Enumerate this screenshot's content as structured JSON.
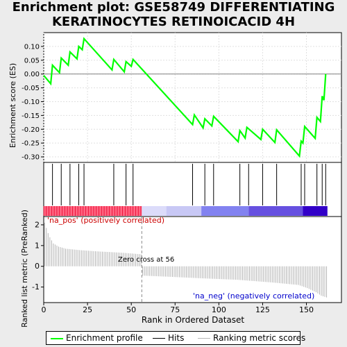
{
  "title_line1": "Enrichment plot: GSE58749 DIFFERENTIATING",
  "title_line2": "KERATINOCYTES RETINOICACID 4H",
  "colors": {
    "enrichment": "#00ff00",
    "hits": "#000000",
    "ranking": "#b4b4b4",
    "pos_label": "#cc0000",
    "neg_label": "#0000cc",
    "zero_line": "#888888"
  },
  "chart_data": {
    "type": "line",
    "x_range": [
      0,
      170
    ],
    "x_ticks": [
      0,
      25,
      50,
      75,
      100,
      125,
      150
    ],
    "xlabel": "Rank in Ordered Dataset",
    "top_panel": {
      "ylabel": "Enrichment score (ES)",
      "ylim": [
        -0.32,
        0.15
      ],
      "y_ticks": [
        "0.10",
        "0.05",
        "0.00",
        "-0.05",
        "-0.10",
        "-0.15",
        "-0.20",
        "-0.25",
        "-0.30"
      ],
      "y_tick_values": [
        0.1,
        0.05,
        0.0,
        -0.05,
        -0.1,
        -0.15,
        -0.2,
        -0.25,
        -0.3
      ],
      "series_name": "Enrichment profile",
      "x": [
        0,
        4,
        5,
        9,
        10,
        14,
        15,
        19,
        20,
        22,
        23,
        39,
        40,
        46,
        47,
        50,
        51,
        85,
        86,
        91,
        92,
        96,
        97,
        111,
        112,
        115,
        116,
        124,
        125,
        132,
        133,
        146,
        147,
        148,
        149,
        155,
        156,
        158,
        159,
        160,
        161
      ],
      "es": [
        -0.005,
        -0.035,
        0.032,
        0.005,
        0.058,
        0.032,
        0.08,
        0.055,
        0.1,
        0.088,
        0.128,
        0.015,
        0.053,
        0.008,
        0.045,
        0.028,
        0.053,
        -0.183,
        -0.148,
        -0.195,
        -0.162,
        -0.188,
        -0.153,
        -0.245,
        -0.205,
        -0.232,
        -0.193,
        -0.237,
        -0.2,
        -0.248,
        -0.202,
        -0.297,
        -0.243,
        -0.25,
        -0.19,
        -0.233,
        -0.157,
        -0.172,
        -0.08,
        -0.095,
        0.0
      ]
    },
    "hits_panel": {
      "series_name": "Hits",
      "hits": [
        5,
        10,
        15,
        20,
        23,
        40,
        47,
        51,
        85,
        92,
        97,
        112,
        117,
        125,
        133,
        147,
        149,
        156,
        159,
        161
      ]
    },
    "rank_panel": {
      "ylabel": "Ranked list metric (PreRanked)",
      "ylim": [
        -1.75,
        2.4
      ],
      "y_ticks": [
        "2",
        "1",
        "0",
        "-1"
      ],
      "y_tick_values": [
        2,
        1,
        0,
        -1
      ],
      "series_name": "Ranking metric scores",
      "zero_cross": 56,
      "zero_cross_label": "Zero cross at 56",
      "pos_label": "'na_pos' (positively correlated)",
      "neg_label": "'na_neg' (negatively correlated)",
      "n": 162,
      "profile_ranks": [
        0,
        1,
        2,
        3,
        5,
        8,
        12,
        20,
        30,
        45,
        55,
        56,
        70,
        90,
        110,
        130,
        145,
        150,
        155,
        158,
        161
      ],
      "profile_values": [
        2.1,
        1.85,
        1.6,
        1.4,
        1.1,
        0.95,
        0.85,
        0.78,
        0.72,
        0.65,
        0.58,
        -0.45,
        -0.5,
        -0.58,
        -0.65,
        -0.78,
        -0.9,
        -1.05,
        -1.25,
        -1.42,
        -1.5
      ]
    },
    "color_bar_segments": [
      {
        "from": 0,
        "to": 56,
        "color": "#ff6682"
      },
      {
        "from": 56,
        "to": 70,
        "color": "#dcdcfa"
      },
      {
        "from": 70,
        "to": 90,
        "color": "#c8c8f5"
      },
      {
        "from": 90,
        "to": 117,
        "color": "#8282f0"
      },
      {
        "from": 117,
        "to": 148,
        "color": "#6650e0"
      },
      {
        "from": 148,
        "to": 162,
        "color": "#3200c8"
      }
    ]
  },
  "legend": {
    "enrichment_label": "Enrichment profile",
    "hits_label": "Hits",
    "ranking_label": "Ranking metric scores"
  }
}
